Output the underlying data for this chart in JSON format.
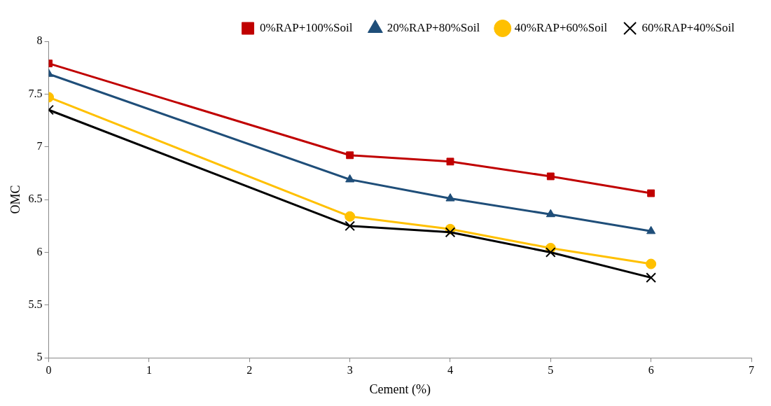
{
  "chart_data": {
    "type": "line",
    "xlabel": "Cement (%)",
    "ylabel": "OMC",
    "x": [
      0,
      3,
      4,
      5,
      6
    ],
    "xlim": [
      0,
      7
    ],
    "xticks": [
      0,
      1,
      2,
      3,
      4,
      5,
      6,
      7
    ],
    "ylim": [
      5,
      8
    ],
    "yticks": [
      5,
      5.5,
      6,
      6.5,
      7,
      7.5,
      8
    ],
    "grid": false,
    "legend": "top right",
    "line_style": "solid",
    "series": [
      {
        "name": "0%RAP+100%Soil",
        "color": "#c00000",
        "marker": "square",
        "values": [
          7.79,
          6.92,
          6.86,
          6.72,
          6.56
        ]
      },
      {
        "name": "20%RAP+80%Soil",
        "color": "#1f4e79",
        "marker": "triangle",
        "values": [
          7.69,
          6.69,
          6.51,
          6.36,
          6.2
        ]
      },
      {
        "name": "40%RAP+60%Soil",
        "color": "#ffc000",
        "marker": "circle",
        "values": [
          7.47,
          6.34,
          6.22,
          6.04,
          5.89
        ]
      },
      {
        "name": "60%RAP+40%Soil",
        "color": "#000000",
        "marker": "cross",
        "values": [
          7.35,
          6.25,
          6.19,
          6.0,
          5.76
        ]
      }
    ]
  }
}
